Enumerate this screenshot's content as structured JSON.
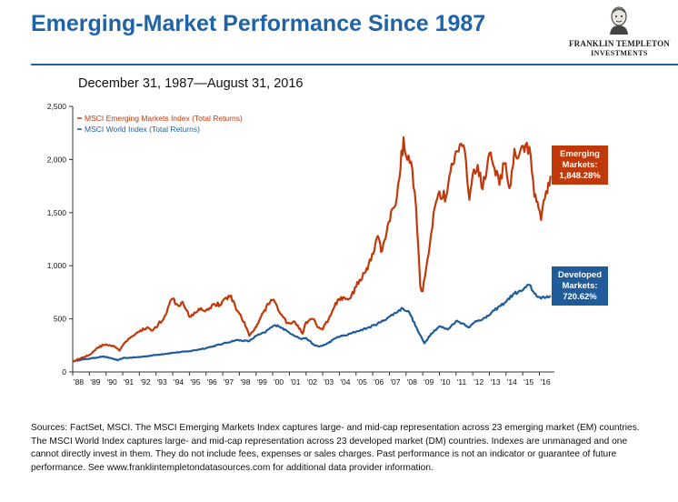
{
  "header": {
    "title": "Emerging-Market Performance Since 1987",
    "logo_line1": "FRANKLIN TEMPLETON",
    "logo_line2": "INVESTMENTS",
    "logo_icon": "franklin-portrait-icon"
  },
  "subtitle": "December 31, 1987—August 31, 2016",
  "sources": "Sources: FactSet, MSCI. The MSCI Emerging Markets Index captures large- and mid-cap representation across 23 emerging market (EM) countries. The MSCI World Index captures large- and mid-cap representation across 23 developed market (DM) countries. Indexes are unmanaged and one cannot directly invest in them. They do not include fees, expenses or sales charges. Past performance is not an indicator or guarantee of future performance. See www.franklintempletondatasources.com for additional data provider information.",
  "chart_data": {
    "type": "line",
    "title": "",
    "xlabel": "",
    "ylabel": "",
    "ylim": [
      0,
      2500
    ],
    "xlim": [
      1988.0,
      2016.9
    ],
    "yticks": [
      0,
      500,
      1000,
      1500,
      2000,
      2500
    ],
    "ytick_labels": [
      "0",
      "500",
      "1,000",
      "1,500",
      "2,000",
      "2,500"
    ],
    "xticks": [
      "'88",
      "'89",
      "'90",
      "'91",
      "'92",
      "'93",
      "'94",
      "'95",
      "'96",
      "'97",
      "'98",
      "'99",
      "'00",
      "'01",
      "'02",
      "'03",
      "'04",
      "'05",
      "'06",
      "'07",
      "'08",
      "'09",
      "'10",
      "'11",
      "'12",
      "'13",
      "'14",
      "'15",
      "'16"
    ],
    "grid": false,
    "legend_position": "top-left",
    "series": [
      {
        "name": "MSCI Emerging Markets Index (Total Returns)",
        "color": "#c0390b",
        "callout": [
          "Emerging",
          "Markets:",
          "1,848.28%"
        ],
        "points": [
          [
            1988.0,
            100
          ],
          [
            1988.5,
            130
          ],
          [
            1989.0,
            160
          ],
          [
            1989.5,
            230
          ],
          [
            1990.0,
            260
          ],
          [
            1990.5,
            240
          ],
          [
            1990.8,
            200
          ],
          [
            1991.0,
            250
          ],
          [
            1991.5,
            330
          ],
          [
            1992.0,
            380
          ],
          [
            1992.5,
            420
          ],
          [
            1992.8,
            390
          ],
          [
            1993.0,
            420
          ],
          [
            1993.5,
            520
          ],
          [
            1993.8,
            640
          ],
          [
            1994.0,
            690
          ],
          [
            1994.3,
            630
          ],
          [
            1994.6,
            660
          ],
          [
            1994.9,
            570
          ],
          [
            1995.0,
            520
          ],
          [
            1995.3,
            560
          ],
          [
            1995.7,
            600
          ],
          [
            1996.0,
            580
          ],
          [
            1996.5,
            640
          ],
          [
            1996.9,
            630
          ],
          [
            1997.2,
            700
          ],
          [
            1997.5,
            720
          ],
          [
            1997.8,
            590
          ],
          [
            1998.0,
            550
          ],
          [
            1998.3,
            470
          ],
          [
            1998.6,
            340
          ],
          [
            1998.9,
            400
          ],
          [
            1999.0,
            420
          ],
          [
            1999.5,
            580
          ],
          [
            1999.9,
            680
          ],
          [
            2000.2,
            640
          ],
          [
            2000.6,
            520
          ],
          [
            2000.9,
            460
          ],
          [
            2001.2,
            470
          ],
          [
            2001.5,
            440
          ],
          [
            2001.8,
            360
          ],
          [
            2002.0,
            470
          ],
          [
            2002.4,
            500
          ],
          [
            2002.7,
            420
          ],
          [
            2003.0,
            400
          ],
          [
            2003.5,
            540
          ],
          [
            2003.9,
            680
          ],
          [
            2004.3,
            700
          ],
          [
            2004.6,
            690
          ],
          [
            2005.0,
            800
          ],
          [
            2005.5,
            930
          ],
          [
            2005.9,
            1050
          ],
          [
            2006.3,
            1280
          ],
          [
            2006.5,
            1130
          ],
          [
            2006.9,
            1380
          ],
          [
            2007.3,
            1550
          ],
          [
            2007.6,
            1820
          ],
          [
            2007.85,
            2210
          ],
          [
            2008.0,
            2030
          ],
          [
            2008.3,
            1980
          ],
          [
            2008.6,
            1550
          ],
          [
            2008.85,
            810
          ],
          [
            2009.0,
            760
          ],
          [
            2009.2,
            970
          ],
          [
            2009.5,
            1300
          ],
          [
            2009.8,
            1600
          ],
          [
            2010.0,
            1700
          ],
          [
            2010.4,
            1650
          ],
          [
            2010.8,
            1950
          ],
          [
            2011.0,
            2080
          ],
          [
            2011.3,
            2150
          ],
          [
            2011.6,
            1980
          ],
          [
            2011.8,
            1620
          ],
          [
            2012.0,
            1860
          ],
          [
            2012.3,
            1950
          ],
          [
            2012.6,
            1720
          ],
          [
            2013.0,
            2060
          ],
          [
            2013.3,
            1920
          ],
          [
            2013.6,
            1760
          ],
          [
            2013.9,
            1960
          ],
          [
            2014.2,
            1730
          ],
          [
            2014.5,
            2100
          ],
          [
            2014.8,
            2050
          ],
          [
            2015.1,
            2070
          ],
          [
            2015.4,
            2120
          ],
          [
            2015.7,
            1650
          ],
          [
            2015.95,
            1540
          ],
          [
            2016.1,
            1430
          ],
          [
            2016.4,
            1700
          ],
          [
            2016.67,
            1848
          ]
        ]
      },
      {
        "name": "MSCI World Index  (Total Returns)",
        "color": "#1f5c99",
        "callout": [
          "Developed",
          "Markets:",
          "720.62%"
        ],
        "points": [
          [
            1988.0,
            100
          ],
          [
            1988.5,
            115
          ],
          [
            1989.0,
            125
          ],
          [
            1989.8,
            145
          ],
          [
            1990.3,
            130
          ],
          [
            1990.7,
            110
          ],
          [
            1991.0,
            130
          ],
          [
            1992.0,
            140
          ],
          [
            1993.0,
            160
          ],
          [
            1994.0,
            180
          ],
          [
            1995.0,
            195
          ],
          [
            1996.0,
            225
          ],
          [
            1997.0,
            265
          ],
          [
            1997.8,
            300
          ],
          [
            1998.6,
            290
          ],
          [
            1999.0,
            340
          ],
          [
            1999.5,
            370
          ],
          [
            2000.0,
            430
          ],
          [
            2000.3,
            440
          ],
          [
            2000.9,
            380
          ],
          [
            2001.7,
            310
          ],
          [
            2002.0,
            320
          ],
          [
            2002.5,
            250
          ],
          [
            2002.8,
            240
          ],
          [
            2003.2,
            260
          ],
          [
            2003.9,
            330
          ],
          [
            2004.5,
            350
          ],
          [
            2005.0,
            380
          ],
          [
            2005.8,
            420
          ],
          [
            2006.5,
            470
          ],
          [
            2007.0,
            520
          ],
          [
            2007.8,
            600
          ],
          [
            2008.2,
            560
          ],
          [
            2008.7,
            390
          ],
          [
            2009.1,
            270
          ],
          [
            2009.5,
            360
          ],
          [
            2010.0,
            430
          ],
          [
            2010.5,
            400
          ],
          [
            2011.0,
            480
          ],
          [
            2011.5,
            450
          ],
          [
            2011.8,
            420
          ],
          [
            2012.2,
            480
          ],
          [
            2012.8,
            510
          ],
          [
            2013.3,
            580
          ],
          [
            2013.9,
            650
          ],
          [
            2014.5,
            740
          ],
          [
            2014.9,
            760
          ],
          [
            2015.4,
            820
          ],
          [
            2015.7,
            740
          ],
          [
            2016.1,
            690
          ],
          [
            2016.67,
            720
          ]
        ]
      }
    ]
  }
}
